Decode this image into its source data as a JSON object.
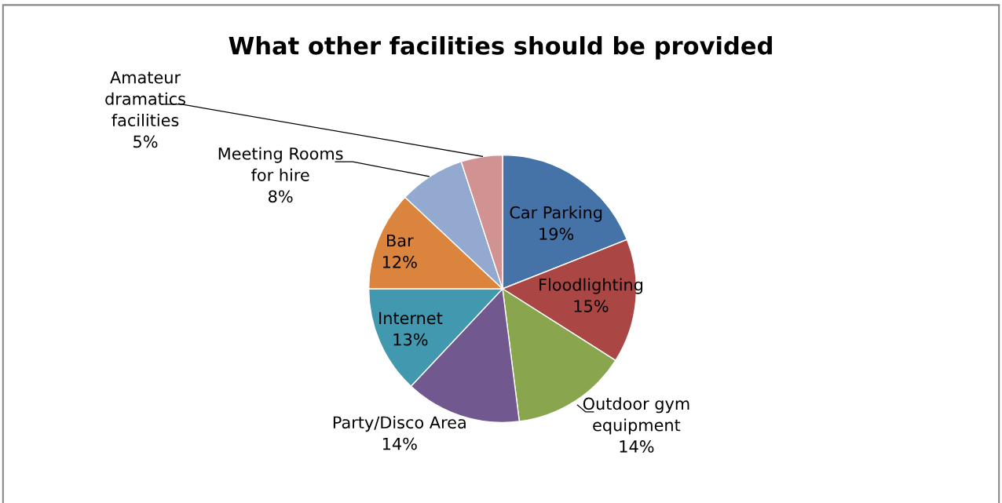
{
  "chart_data": {
    "type": "pie",
    "title": "What other facilities should be provided",
    "categories": [
      "Car Parking",
      "Floodlighting",
      "Outdoor gym equipment",
      "Party/Disco Area",
      "Internet",
      "Bar",
      "Meeting Rooms for hire",
      "Amateur dramatics facilities"
    ],
    "values": [
      19,
      15,
      14,
      14,
      13,
      12,
      8,
      5
    ],
    "value_labels": [
      "19%",
      "15%",
      "14%",
      "14%",
      "13%",
      "12%",
      "8%",
      "5%"
    ],
    "colors": [
      "#4572a7",
      "#aa4643",
      "#89a54e",
      "#71588f",
      "#4198af",
      "#db843d",
      "#93a9cf",
      "#d19392"
    ],
    "legend": false
  }
}
